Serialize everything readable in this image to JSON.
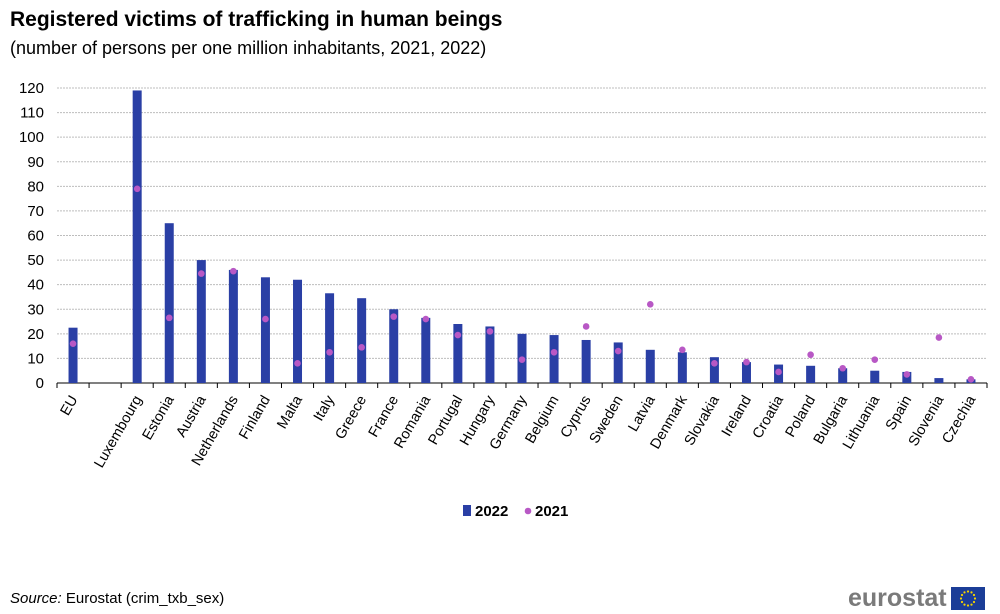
{
  "header": {
    "title": "Registered victims of trafficking in human beings",
    "subtitle": "(number  of persons per one million  inhabitants,  2021, 2022)"
  },
  "source": {
    "label": "Source:",
    "text": "Eurostat (crim_txb_sex)"
  },
  "logo": {
    "text": "eurostat",
    "flag_icon": "eu-flag-icon"
  },
  "colors": {
    "bar_2022": "#2a3fa5",
    "dot_2021": "#b858c5",
    "grid": "#bdbdbd"
  },
  "chart_data": {
    "type": "bar",
    "title": "Registered victims of trafficking in human beings",
    "categories": [
      "EU",
      "Luxembourg",
      "Estonia",
      "Austria",
      "Netherlands",
      "Finland",
      "Malta",
      "Italy",
      "Greece",
      "France",
      "Romania",
      "Portugal",
      "Hungary",
      "Germany",
      "Belgium",
      "Cyprus",
      "Sweden",
      "Latvia",
      "Denmark",
      "Slovakia",
      "Ireland",
      "Croatia",
      "Poland",
      "Bulgaria",
      "Lithuania",
      "Spain",
      "Slovenia",
      "Czechia"
    ],
    "series": [
      {
        "name": "2022",
        "kind": "bar",
        "values": [
          22.5,
          119,
          65,
          50,
          46,
          43,
          42,
          36.5,
          34.5,
          30,
          26.5,
          24,
          23,
          20,
          19.5,
          17.5,
          16.5,
          13.5,
          12.5,
          10.5,
          8.5,
          7.5,
          7,
          6,
          5,
          4.5,
          2,
          1.5
        ]
      },
      {
        "name": "2021",
        "kind": "dot",
        "values": [
          16,
          79,
          26.5,
          44.5,
          45.5,
          26,
          8,
          12.5,
          14.5,
          27,
          26,
          19.5,
          21,
          9.5,
          12.5,
          23,
          13,
          32,
          13.5,
          8,
          8.5,
          4.5,
          11.5,
          6,
          9.5,
          3.5,
          18.5,
          1.5
        ]
      }
    ],
    "yticks": [
      0,
      10,
      20,
      30,
      40,
      50,
      60,
      70,
      80,
      90,
      100,
      110,
      120
    ],
    "ylim": [
      0,
      120
    ],
    "grid": true,
    "legend": "bottom-center"
  }
}
